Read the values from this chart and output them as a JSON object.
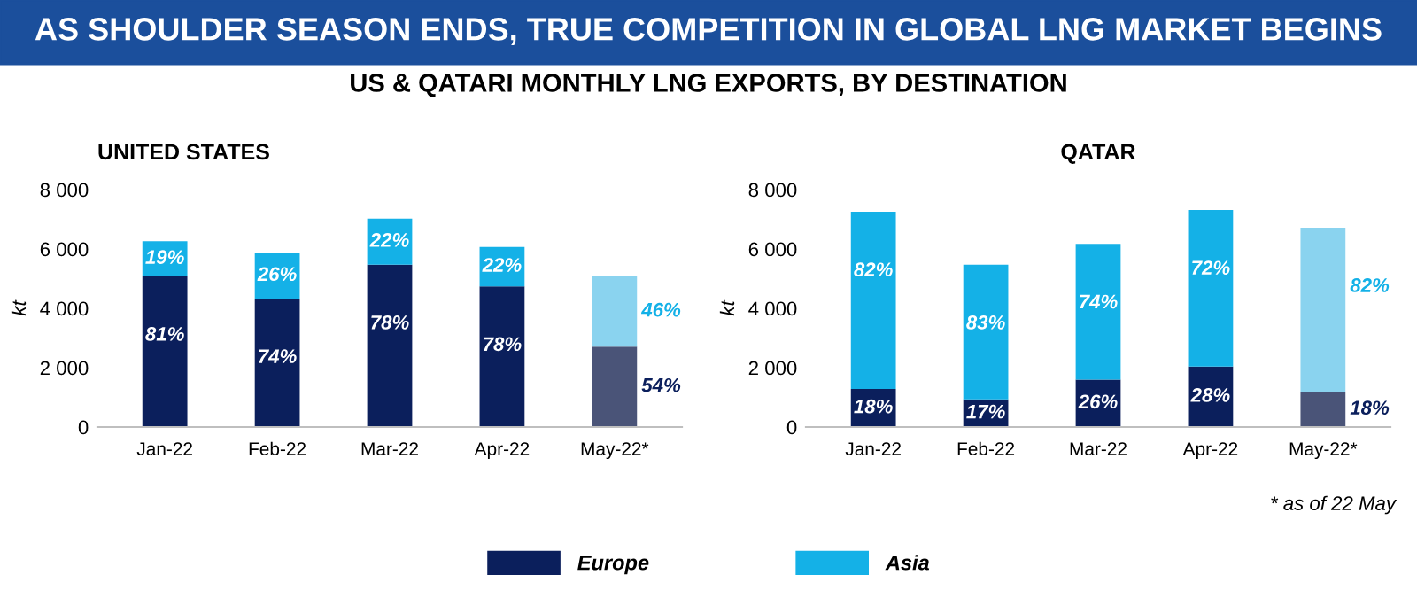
{
  "chart_data": [
    {
      "type": "bar",
      "title": "UNITED STATES",
      "ylabel": "kt",
      "stacked": true,
      "categories": [
        "Jan-22",
        "Feb-22",
        "Mar-22",
        "Apr-22",
        "May-22*"
      ],
      "series": [
        {
          "name": "Europe",
          "color": "#0b1f5c",
          "colors": [
            "#0b1f5c",
            "#0b1f5c",
            "#0b1f5c",
            "#0b1f5c",
            "#4a5478"
          ],
          "values": [
            5080,
            4330,
            5470,
            4740,
            2710
          ]
        },
        {
          "name": "Asia",
          "color": "#14b1e7",
          "colors": [
            "#14b1e7",
            "#14b1e7",
            "#14b1e7",
            "#14b1e7",
            "#8ad3ef"
          ],
          "values": [
            1180,
            1540,
            1550,
            1330,
            2370
          ]
        }
      ],
      "ylim": [
        0,
        8000
      ],
      "yticks": [
        {
          "value": 0,
          "label": "0"
        },
        {
          "value": 2000,
          "label": "2 000"
        },
        {
          "value": 4000,
          "label": "4 000"
        },
        {
          "value": 6000,
          "label": "6 000"
        },
        {
          "value": 8000,
          "label": "8 000"
        }
      ],
      "legend": "bottom",
      "annotations": [
        "AS SHOULDER SEASON ENDS, TRUE COMPETITION IN GLOBAL LNG MARKET BEGINS",
        "US & QATARI MONTHLY LNG EXPORTS, BY DESTINATION",
        {
          "text": "81%",
          "x": "Jan-22",
          "y": 5080
        },
        {
          "text": "74%",
          "x": "Feb-22",
          "y": 4330
        },
        {
          "text": "78%",
          "x": "Mar-22",
          "y": 5470
        },
        {
          "text": "78%",
          "x": "Apr-22",
          "y": 4740
        },
        {
          "text": "54%",
          "x": "May-22*",
          "y": 2710
        },
        {
          "text": "19%",
          "x": "Jan-22",
          "y": 6260
        },
        {
          "text": "26%",
          "x": "Feb-22",
          "y": 5870
        },
        {
          "text": "22%",
          "x": "Mar-22",
          "y": 7020
        },
        {
          "text": "22%",
          "x": "Apr-22",
          "y": 6070
        },
        {
          "text": "46%",
          "x": "May-22*",
          "y": 5080
        }
      ]
    },
    {
      "type": "bar",
      "title": "QATAR",
      "ylabel": "kt",
      "stacked": true,
      "categories": [
        "Jan-22",
        "Feb-22",
        "Mar-22",
        "Apr-22",
        "May-22*"
      ],
      "series": [
        {
          "name": "Europe",
          "color": "#0b1f5c",
          "colors": [
            "#0b1f5c",
            "#0b1f5c",
            "#0b1f5c",
            "#0b1f5c",
            "#4a5478"
          ],
          "values": [
            1280,
            930,
            1600,
            2040,
            1190
          ]
        },
        {
          "name": "Asia",
          "color": "#14b1e7",
          "colors": [
            "#14b1e7",
            "#14b1e7",
            "#14b1e7",
            "#14b1e7",
            "#8ad3ef"
          ],
          "values": [
            5970,
            4540,
            4570,
            5270,
            5530
          ]
        }
      ],
      "ylim": [
        0,
        8000
      ],
      "yticks": [
        {
          "value": 0,
          "label": "0"
        },
        {
          "value": 2000,
          "label": "2 000"
        },
        {
          "value": 4000,
          "label": "4 000"
        },
        {
          "value": 6000,
          "label": "6 000"
        },
        {
          "value": 8000,
          "label": "8 000"
        }
      ],
      "legend": "bottom",
      "annotations": [
        "* as of 22 May",
        {
          "text": "18%",
          "x": "Jan-22",
          "y": 1280
        },
        {
          "text": "17%",
          "x": "Feb-22",
          "y": 930
        },
        {
          "text": "26%",
          "x": "Mar-22",
          "y": 1600
        },
        {
          "text": "28%",
          "x": "Apr-22",
          "y": 2040
        },
        {
          "text": "18%",
          "x": "May-22*",
          "y": 1190
        },
        {
          "text": "82%",
          "x": "Jan-22",
          "y": 7250
        },
        {
          "text": "83%",
          "x": "Feb-22",
          "y": 5470
        },
        {
          "text": "74%",
          "x": "Mar-22",
          "y": 6170
        },
        {
          "text": "72%",
          "x": "Apr-22",
          "y": 7310
        },
        {
          "text": "82%",
          "x": "May-22*",
          "y": 6720
        }
      ]
    }
  ]
}
